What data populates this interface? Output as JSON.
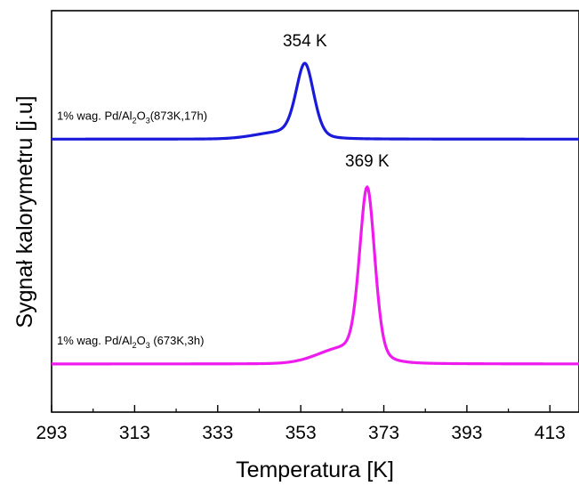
{
  "chart_data": {
    "type": "line",
    "title": "",
    "xlabel": "Temperatura [K]",
    "ylabel": "Sygnał kalorymetru [j.u]",
    "xlim": [
      293,
      420
    ],
    "x_ticks": [
      "293",
      "313",
      "333",
      "353",
      "373",
      "393",
      "413"
    ],
    "y_ticks": [],
    "grid": false,
    "series": [
      {
        "name_parts": [
          "1% wag. Pd/Al",
          "2",
          "O",
          "3",
          "(873K,17h)"
        ],
        "color": "#1a1adb",
        "baseline": 0.68,
        "peak_x": 354,
        "peak_height": 0.18,
        "peak_width": 2.2,
        "peak_label": "354 K"
      },
      {
        "name_parts": [
          "1% wag. Pd/Al",
          "2",
          "O",
          "3",
          " (673K,3h)"
        ],
        "color": "#ee1aee",
        "baseline": 0.12,
        "peak_x": 369,
        "peak_height": 0.42,
        "peak_width": 1.9,
        "peak_label": "369 K"
      }
    ]
  }
}
